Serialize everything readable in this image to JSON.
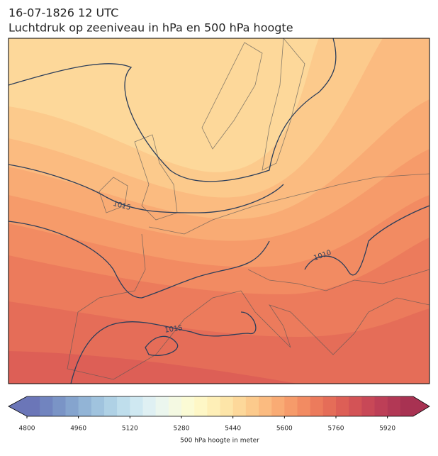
{
  "title": "16-07-1826 12 UTC",
  "subtitle": "Luchtdruk op zeeniveau in hPa en 500 hPa hoogte",
  "isobar_labels": [
    1015,
    1010,
    1015
  ],
  "colorbar": {
    "label": "500 hPa hoogte in meter",
    "levels": [
      4800,
      4840,
      4880,
      4920,
      4960,
      5000,
      5040,
      5080,
      5120,
      5160,
      5200,
      5240,
      5280,
      5320,
      5360,
      5400,
      5440,
      5480,
      5520,
      5560,
      5600,
      5640,
      5680,
      5720,
      5760,
      5800,
      5840,
      5880,
      5920,
      5960,
      6000
    ],
    "ticks": [
      4800,
      4960,
      5120,
      5280,
      5440,
      5600,
      5760,
      5920
    ],
    "colors": [
      "#6b76b8",
      "#7184bf",
      "#7a94c6",
      "#85a4ce",
      "#92b4d6",
      "#a0c3de",
      "#afd1e5",
      "#bfdeec",
      "#cfe8f1",
      "#dff0f3",
      "#ebf6ee",
      "#f4f9e2",
      "#fbfbd5",
      "#fef7c6",
      "#feefb7",
      "#fde5a8",
      "#fdd89a",
      "#fcca8c",
      "#fbbb80",
      "#f9ab74",
      "#f69b6a",
      "#f28b62",
      "#ec7b5c",
      "#e56d58",
      "#dd5f56",
      "#d35356",
      "#c84857",
      "#bd3f57",
      "#b23855",
      "#a83252"
    ]
  }
}
